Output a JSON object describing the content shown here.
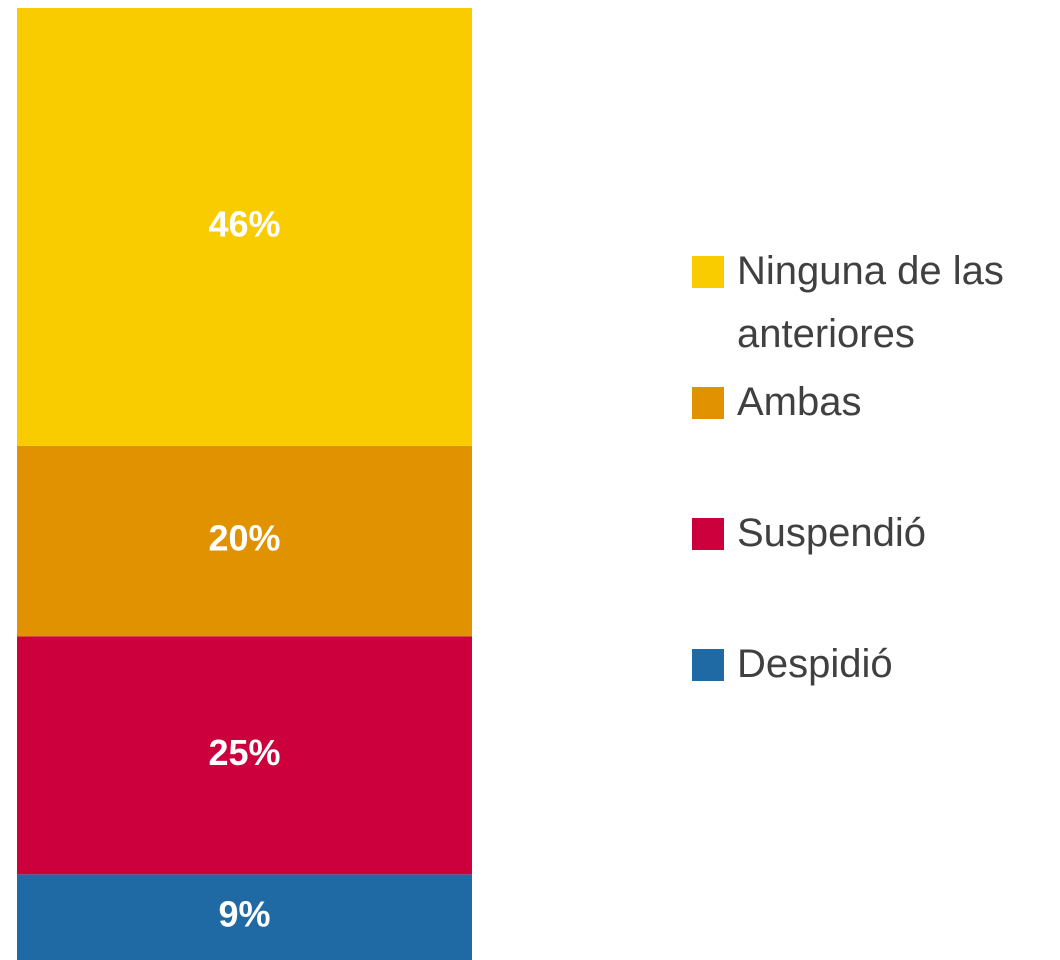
{
  "chart_data": {
    "type": "stacked_bar",
    "categories": [
      null
    ],
    "series": [
      {
        "name": "Despidió",
        "color": "#1f6aa5",
        "values": [
          9
        ],
        "value_labels": [
          "9%"
        ]
      },
      {
        "name": "Suspendió",
        "color": "#cc003d",
        "values": [
          25
        ],
        "value_labels": [
          "25%"
        ]
      },
      {
        "name": "Ambas",
        "color": "#e09200",
        "values": [
          20
        ],
        "value_labels": [
          "20%"
        ]
      },
      {
        "name": "Ninguna de las anteriores",
        "color": "#f9cc00",
        "values": [
          46
        ],
        "value_labels": [
          "46%"
        ]
      }
    ],
    "legend": "right"
  }
}
